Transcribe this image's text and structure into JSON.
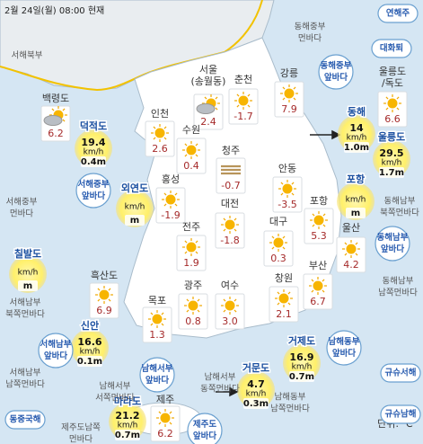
{
  "header": {
    "title": "2월 24일(월) 08:00 현재",
    "unit": "단위: ℃"
  },
  "stations": [
    {
      "name": [
        "백령도"
      ],
      "temp": "6.2"
    },
    {
      "name": [
        "서울",
        "(송월동)"
      ],
      "temp": "2.4"
    },
    {
      "name": [
        "춘천"
      ],
      "temp": "-1.7"
    },
    {
      "name": [
        "강릉"
      ],
      "temp": "7.9"
    },
    {
      "name": [
        "울릉도",
        "/독도"
      ],
      "temp": "6.6"
    },
    {
      "name": [
        "인천"
      ],
      "temp": "2.6"
    },
    {
      "name": [
        "수원"
      ],
      "temp": "0.4"
    },
    {
      "name": [
        "청주"
      ],
      "temp": "-0.7"
    },
    {
      "name": [
        "안동"
      ],
      "temp": "-3.5"
    },
    {
      "name": [
        "홍성"
      ],
      "temp": "-1.9"
    },
    {
      "name": [
        "대전"
      ],
      "temp": "-1.8"
    },
    {
      "name": [
        "포항"
      ],
      "temp": "5.3"
    },
    {
      "name": [
        "대구"
      ],
      "temp": "0.3"
    },
    {
      "name": [
        "전주"
      ],
      "temp": "1.9"
    },
    {
      "name": [
        "울산"
      ],
      "temp": "4.2"
    },
    {
      "name": [
        "흑산도"
      ],
      "temp": "6.9"
    },
    {
      "name": [
        "광주"
      ],
      "temp": "0.8"
    },
    {
      "name": [
        "여수"
      ],
      "temp": "3.0"
    },
    {
      "name": [
        "창원"
      ],
      "temp": "2.1"
    },
    {
      "name": [
        "부산"
      ],
      "temp": "6.7"
    },
    {
      "name": [
        "목포"
      ],
      "temp": "1.3"
    },
    {
      "name": [
        "제주"
      ],
      "temp": "6.2"
    }
  ],
  "buoys": [
    {
      "name": "덕적도",
      "speed": "19.4",
      "unit": "km/h",
      "wave": "0.4m"
    },
    {
      "name": "외연도",
      "unit": "km/h",
      "wave": "m"
    },
    {
      "name": "칠발도",
      "unit": "km/h",
      "wave": "m"
    },
    {
      "name": "신안",
      "speed": "16.6",
      "unit": "km/h",
      "wave": "0.1m"
    },
    {
      "name": "마라도",
      "speed": "21.2",
      "unit": "km/h",
      "wave": "0.7m"
    },
    {
      "name": "거문도",
      "speed": "4.7",
      "unit": "km/h",
      "wave": "0.3m"
    },
    {
      "name": "거제도",
      "speed": "16.9",
      "unit": "km/h",
      "wave": "0.7m"
    },
    {
      "name": "동해",
      "speed": "14",
      "unit": "km/h",
      "wave": "1.0m"
    },
    {
      "name": "울릉도",
      "speed": "29.5",
      "unit": "km/h",
      "wave": "1.7m"
    },
    {
      "name": "포항",
      "unit": "km/h",
      "wave": "m"
    }
  ],
  "sea_areas": [
    {
      "lines": [
        "서해북부"
      ]
    },
    {
      "lines": [
        "서해중부",
        "먼바다"
      ]
    },
    {
      "lines": [
        "서해중부",
        "앞바다"
      ]
    },
    {
      "lines": [
        "서해남부",
        "북쪽먼바다"
      ]
    },
    {
      "lines": [
        "서해남부",
        "앞바다"
      ]
    },
    {
      "lines": [
        "서해남부",
        "남쪽먼바다"
      ]
    },
    {
      "lines": [
        "남해서부",
        "앞바다"
      ]
    },
    {
      "lines": [
        "남해서부",
        "서쪽먼바다"
      ]
    },
    {
      "lines": [
        "남해서부",
        "동쪽먼바다"
      ]
    },
    {
      "lines": [
        "제주도남쪽",
        "먼바다"
      ]
    },
    {
      "lines": [
        "동중국해"
      ]
    },
    {
      "lines": [
        "제주도",
        "앞바다"
      ]
    },
    {
      "lines": [
        "남해동부",
        "앞바다"
      ]
    },
    {
      "lines": [
        "남해동부",
        "남쪽먼바다"
      ]
    },
    {
      "lines": [
        "규슈서해"
      ]
    },
    {
      "lines": [
        "규슈남해"
      ]
    },
    {
      "lines": [
        "동해중부",
        "먼바다"
      ]
    },
    {
      "lines": [
        "동해중부",
        "앞바다"
      ]
    },
    {
      "lines": [
        "연해주"
      ]
    },
    {
      "lines": [
        "대화퇴"
      ]
    },
    {
      "lines": [
        "동해남부",
        "북쪽먼바다"
      ]
    },
    {
      "lines": [
        "동해남부",
        "앞바다"
      ]
    },
    {
      "lines": [
        "동해남부",
        "남쪽먼바다"
      ]
    }
  ]
}
